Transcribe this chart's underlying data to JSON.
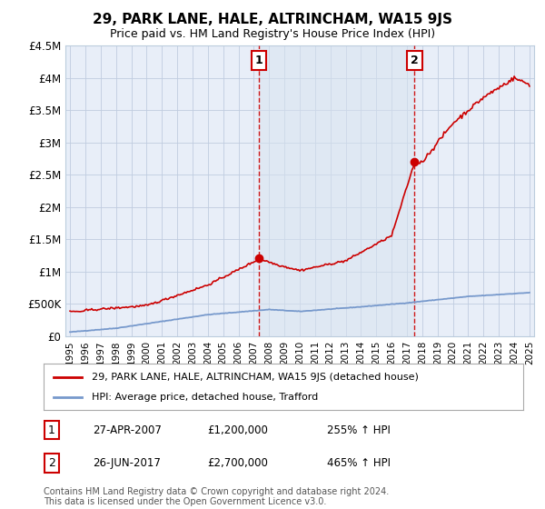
{
  "title": "29, PARK LANE, HALE, ALTRINCHAM, WA15 9JS",
  "subtitle": "Price paid vs. HM Land Registry's House Price Index (HPI)",
  "ylim": [
    0,
    4500000
  ],
  "yticks": [
    0,
    500000,
    1000000,
    1500000,
    2000000,
    2500000,
    3000000,
    3500000,
    4000000,
    4500000
  ],
  "ytick_labels": [
    "£0",
    "£500K",
    "£1M",
    "£1.5M",
    "£2M",
    "£2.5M",
    "£3M",
    "£3.5M",
    "£4M",
    "£4.5M"
  ],
  "legend1": "29, PARK LANE, HALE, ALTRINCHAM, WA15 9JS (detached house)",
  "legend2": "HPI: Average price, detached house, Trafford",
  "marker1_label": "1",
  "marker1_date": "27-APR-2007",
  "marker1_price": "£1,200,000",
  "marker1_hpi": "255% ↑ HPI",
  "marker2_label": "2",
  "marker2_date": "26-JUN-2017",
  "marker2_price": "£2,700,000",
  "marker2_hpi": "465% ↑ HPI",
  "footer": "Contains HM Land Registry data © Crown copyright and database right 2024.\nThis data is licensed under the Open Government Licence v3.0.",
  "line1_color": "#cc0000",
  "line2_color": "#7799cc",
  "marker_color": "#cc0000",
  "background_color": "#e8eef8",
  "shade_color": "#d8e4f0",
  "grid_color": "#c0cce0"
}
